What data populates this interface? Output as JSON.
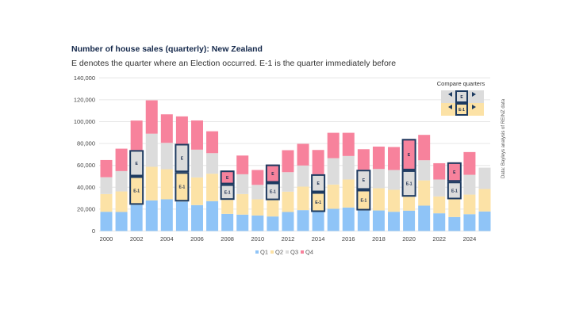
{
  "chart_data": {
    "type": "bar",
    "stacked": true,
    "title": "Number of house sales (quarterly): New Zealand",
    "subtitle": "E denotes the quarter where an Election occurred. E-1 is the quarter immediately before",
    "source": "Data: Bayleys analysis of REINZ data",
    "ylim": [
      0,
      140000
    ],
    "yticks": [
      "0",
      "20,000",
      "40,000",
      "60,000",
      "80,000",
      "100,000",
      "120,000",
      "140,000"
    ],
    "grid": true,
    "legend_position": "bottom",
    "categories": [
      "2000",
      "2001",
      "2002",
      "2003",
      "2004",
      "2005",
      "2006",
      "2007",
      "2008",
      "2009",
      "2010",
      "2011",
      "2012",
      "2013",
      "2014",
      "2015",
      "2016",
      "2017",
      "2018",
      "2019",
      "2020",
      "2021",
      "2022",
      "2023",
      "2024",
      "2025"
    ],
    "xtick_labels": [
      "2000",
      "2002",
      "2004",
      "2006",
      "2008",
      "2010",
      "2012",
      "2014",
      "2016",
      "2018",
      "2020",
      "2022",
      "2024"
    ],
    "series": [
      {
        "name": "Q1",
        "color": "#8fc4f7",
        "values": [
          17600,
          17400,
          24000,
          28000,
          29000,
          27000,
          23700,
          27300,
          15700,
          15000,
          14200,
          13300,
          17400,
          19100,
          17400,
          20300,
          21500,
          18800,
          18800,
          17600,
          18600,
          23200,
          16200,
          12800,
          15400,
          17900
        ]
      },
      {
        "name": "Q2",
        "color": "#fce2a6",
        "values": [
          16200,
          18800,
          26000,
          30700,
          27500,
          26800,
          25300,
          25100,
          12800,
          18800,
          14800,
          14900,
          18600,
          21500,
          18100,
          22200,
          25600,
          18900,
          20300,
          20100,
          12800,
          23100,
          15400,
          16200,
          17900,
          20500
        ]
      },
      {
        "name": "Q3",
        "color": "#dcdcdc",
        "values": [
          15400,
          18600,
          24000,
          30300,
          24100,
          25900,
          25400,
          18800,
          14200,
          18100,
          13200,
          16000,
          17800,
          19300,
          16400,
          24100,
          21500,
          18300,
          17600,
          18100,
          24100,
          18400,
          15500,
          16100,
          18100,
          19500
        ]
      },
      {
        "name": "Q4",
        "color": "#f7829c",
        "values": [
          15700,
          20500,
          27000,
          30500,
          26100,
          25100,
          26700,
          20000,
          12600,
          17100,
          13600,
          16600,
          20100,
          19800,
          22200,
          23200,
          21200,
          18800,
          20500,
          21000,
          28700,
          23200,
          14900,
          17700,
          20800,
          null
        ]
      }
    ],
    "elections": [
      {
        "year": "2002",
        "E": "Q3",
        "E-1": "Q2"
      },
      {
        "year": "2005",
        "E": "Q3",
        "E-1": "Q2"
      },
      {
        "year": "2008",
        "E": "Q4",
        "E-1": "Q3"
      },
      {
        "year": "2011",
        "E": "Q4",
        "E-1": "Q3"
      },
      {
        "year": "2014",
        "E": "Q3",
        "E-1": "Q2"
      },
      {
        "year": "2017",
        "E": "Q3",
        "E-1": "Q2"
      },
      {
        "year": "2020",
        "E": "Q4",
        "E-1": "Q3"
      },
      {
        "year": "2023",
        "E": "Q4",
        "E-1": "Q3"
      }
    ],
    "box_labels": {
      "E": "E",
      "E-1": "E-1"
    },
    "box_color": "#1d3a60",
    "compare_legend": {
      "title": "Compare quarters",
      "E": "E",
      "E-1": "E-1"
    }
  }
}
